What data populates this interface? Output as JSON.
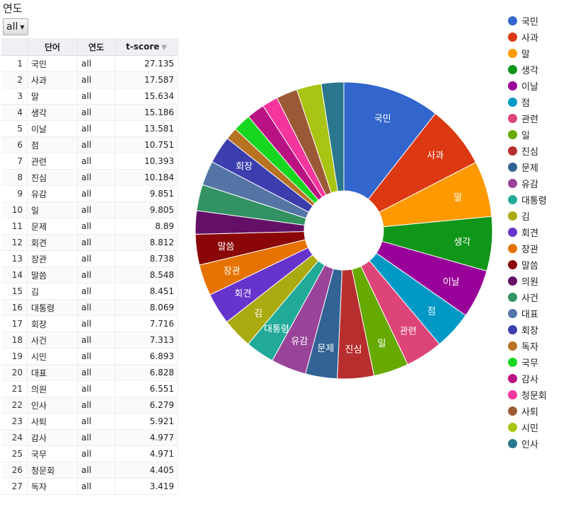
{
  "filter": {
    "label": "연도",
    "selected": "all"
  },
  "table": {
    "columns": [
      "단어",
      "연도",
      "t-score"
    ],
    "rows": [
      {
        "idx": "1",
        "word": "국민",
        "year": "all",
        "score": "27.135"
      },
      {
        "idx": "2",
        "word": "사과",
        "year": "all",
        "score": "17.587"
      },
      {
        "idx": "3",
        "word": "말",
        "year": "all",
        "score": "15.634"
      },
      {
        "idx": "4",
        "word": "생각",
        "year": "all",
        "score": "15.186"
      },
      {
        "idx": "5",
        "word": "이날",
        "year": "all",
        "score": "13.581"
      },
      {
        "idx": "6",
        "word": "점",
        "year": "all",
        "score": "10.751"
      },
      {
        "idx": "7",
        "word": "관련",
        "year": "all",
        "score": "10.393"
      },
      {
        "idx": "8",
        "word": "진심",
        "year": "all",
        "score": "10.184"
      },
      {
        "idx": "9",
        "word": "유감",
        "year": "all",
        "score": "9.851"
      },
      {
        "idx": "10",
        "word": "일",
        "year": "all",
        "score": "9.805"
      },
      {
        "idx": "11",
        "word": "문제",
        "year": "all",
        "score": "8.89"
      },
      {
        "idx": "12",
        "word": "회견",
        "year": "all",
        "score": "8.812"
      },
      {
        "idx": "13",
        "word": "장관",
        "year": "all",
        "score": "8.738"
      },
      {
        "idx": "14",
        "word": "말씀",
        "year": "all",
        "score": "8.548"
      },
      {
        "idx": "15",
        "word": "김",
        "year": "all",
        "score": "8.451"
      },
      {
        "idx": "16",
        "word": "대통령",
        "year": "all",
        "score": "8.069"
      },
      {
        "idx": "17",
        "word": "회장",
        "year": "all",
        "score": "7.716"
      },
      {
        "idx": "18",
        "word": "사건",
        "year": "all",
        "score": "7.313"
      },
      {
        "idx": "19",
        "word": "시민",
        "year": "all",
        "score": "6.893"
      },
      {
        "idx": "20",
        "word": "대표",
        "year": "all",
        "score": "6.828"
      },
      {
        "idx": "21",
        "word": "의원",
        "year": "all",
        "score": "6.551"
      },
      {
        "idx": "22",
        "word": "인사",
        "year": "all",
        "score": "6.279"
      },
      {
        "idx": "23",
        "word": "사퇴",
        "year": "all",
        "score": "5.921"
      },
      {
        "idx": "24",
        "word": "감사",
        "year": "all",
        "score": "4.977"
      },
      {
        "idx": "25",
        "word": "국무",
        "year": "all",
        "score": "4.971"
      },
      {
        "idx": "26",
        "word": "청문회",
        "year": "all",
        "score": "4.405"
      },
      {
        "idx": "27",
        "word": "독자",
        "year": "all",
        "score": "3.419"
      }
    ]
  },
  "chart_data": {
    "type": "pie",
    "donut": true,
    "legend_position": "right",
    "slices": [
      {
        "label": "국민",
        "value": 27.135,
        "color": "#3366cc"
      },
      {
        "label": "사과",
        "value": 17.587,
        "color": "#dc3912"
      },
      {
        "label": "말",
        "value": 15.634,
        "color": "#ff9900"
      },
      {
        "label": "생각",
        "value": 15.186,
        "color": "#109618"
      },
      {
        "label": "이날",
        "value": 13.581,
        "color": "#990099"
      },
      {
        "label": "점",
        "value": 10.751,
        "color": "#0099c6"
      },
      {
        "label": "관련",
        "value": 10.393,
        "color": "#dd4477"
      },
      {
        "label": "일",
        "value": 9.805,
        "color": "#66aa00"
      },
      {
        "label": "진심",
        "value": 10.184,
        "color": "#b82e2e"
      },
      {
        "label": "문제",
        "value": 8.89,
        "color": "#316395"
      },
      {
        "label": "유감",
        "value": 9.851,
        "color": "#994499"
      },
      {
        "label": "대통령",
        "value": 8.069,
        "color": "#22aa99"
      },
      {
        "label": "김",
        "value": 8.451,
        "color": "#aaaa11"
      },
      {
        "label": "회견",
        "value": 8.812,
        "color": "#6633cc"
      },
      {
        "label": "장관",
        "value": 8.738,
        "color": "#e67300"
      },
      {
        "label": "말씀",
        "value": 8.548,
        "color": "#8b0707"
      },
      {
        "label": "의원",
        "value": 6.551,
        "color": "#651067"
      },
      {
        "label": "사건",
        "value": 7.313,
        "color": "#329262"
      },
      {
        "label": "대표",
        "value": 6.828,
        "color": "#5574a6"
      },
      {
        "label": "회장",
        "value": 7.716,
        "color": "#3b3eac"
      },
      {
        "label": "독자",
        "value": 3.419,
        "color": "#b77322"
      },
      {
        "label": "국무",
        "value": 4.971,
        "color": "#16d620"
      },
      {
        "label": "감사",
        "value": 4.977,
        "color": "#b91383"
      },
      {
        "label": "청문회",
        "value": 4.405,
        "color": "#f4359e"
      },
      {
        "label": "사퇴",
        "value": 5.921,
        "color": "#9c5935"
      },
      {
        "label": "시민",
        "value": 6.893,
        "color": "#a9c413"
      },
      {
        "label": "인사",
        "value": 6.279,
        "color": "#2a778d"
      }
    ]
  }
}
